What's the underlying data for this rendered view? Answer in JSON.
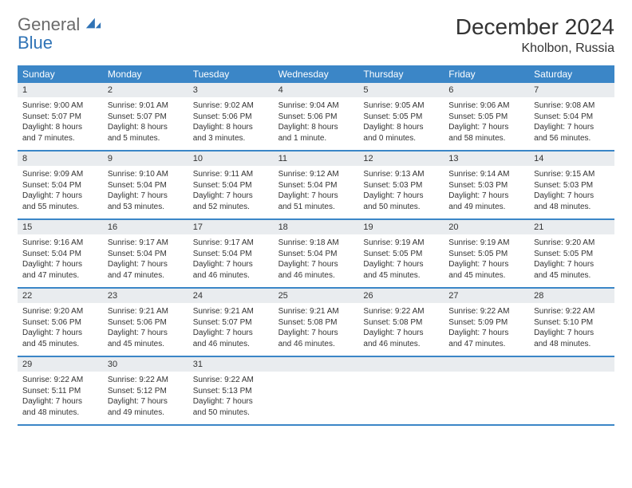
{
  "brand": {
    "word1": "General",
    "word2": "Blue"
  },
  "title": "December 2024",
  "location": "Kholbon, Russia",
  "colors": {
    "header_bg": "#3b86c7",
    "header_text": "#ffffff",
    "daynum_bg": "#e9ecef",
    "border": "#3b86c7",
    "logo_gray": "#6a6a6a",
    "logo_blue": "#2f73b6"
  },
  "dow": [
    "Sunday",
    "Monday",
    "Tuesday",
    "Wednesday",
    "Thursday",
    "Friday",
    "Saturday"
  ],
  "weeks": [
    [
      {
        "n": "1",
        "sr": "Sunrise: 9:00 AM",
        "ss": "Sunset: 5:07 PM",
        "d1": "Daylight: 8 hours",
        "d2": "and 7 minutes."
      },
      {
        "n": "2",
        "sr": "Sunrise: 9:01 AM",
        "ss": "Sunset: 5:07 PM",
        "d1": "Daylight: 8 hours",
        "d2": "and 5 minutes."
      },
      {
        "n": "3",
        "sr": "Sunrise: 9:02 AM",
        "ss": "Sunset: 5:06 PM",
        "d1": "Daylight: 8 hours",
        "d2": "and 3 minutes."
      },
      {
        "n": "4",
        "sr": "Sunrise: 9:04 AM",
        "ss": "Sunset: 5:06 PM",
        "d1": "Daylight: 8 hours",
        "d2": "and 1 minute."
      },
      {
        "n": "5",
        "sr": "Sunrise: 9:05 AM",
        "ss": "Sunset: 5:05 PM",
        "d1": "Daylight: 8 hours",
        "d2": "and 0 minutes."
      },
      {
        "n": "6",
        "sr": "Sunrise: 9:06 AM",
        "ss": "Sunset: 5:05 PM",
        "d1": "Daylight: 7 hours",
        "d2": "and 58 minutes."
      },
      {
        "n": "7",
        "sr": "Sunrise: 9:08 AM",
        "ss": "Sunset: 5:04 PM",
        "d1": "Daylight: 7 hours",
        "d2": "and 56 minutes."
      }
    ],
    [
      {
        "n": "8",
        "sr": "Sunrise: 9:09 AM",
        "ss": "Sunset: 5:04 PM",
        "d1": "Daylight: 7 hours",
        "d2": "and 55 minutes."
      },
      {
        "n": "9",
        "sr": "Sunrise: 9:10 AM",
        "ss": "Sunset: 5:04 PM",
        "d1": "Daylight: 7 hours",
        "d2": "and 53 minutes."
      },
      {
        "n": "10",
        "sr": "Sunrise: 9:11 AM",
        "ss": "Sunset: 5:04 PM",
        "d1": "Daylight: 7 hours",
        "d2": "and 52 minutes."
      },
      {
        "n": "11",
        "sr": "Sunrise: 9:12 AM",
        "ss": "Sunset: 5:04 PM",
        "d1": "Daylight: 7 hours",
        "d2": "and 51 minutes."
      },
      {
        "n": "12",
        "sr": "Sunrise: 9:13 AM",
        "ss": "Sunset: 5:03 PM",
        "d1": "Daylight: 7 hours",
        "d2": "and 50 minutes."
      },
      {
        "n": "13",
        "sr": "Sunrise: 9:14 AM",
        "ss": "Sunset: 5:03 PM",
        "d1": "Daylight: 7 hours",
        "d2": "and 49 minutes."
      },
      {
        "n": "14",
        "sr": "Sunrise: 9:15 AM",
        "ss": "Sunset: 5:03 PM",
        "d1": "Daylight: 7 hours",
        "d2": "and 48 minutes."
      }
    ],
    [
      {
        "n": "15",
        "sr": "Sunrise: 9:16 AM",
        "ss": "Sunset: 5:04 PM",
        "d1": "Daylight: 7 hours",
        "d2": "and 47 minutes."
      },
      {
        "n": "16",
        "sr": "Sunrise: 9:17 AM",
        "ss": "Sunset: 5:04 PM",
        "d1": "Daylight: 7 hours",
        "d2": "and 47 minutes."
      },
      {
        "n": "17",
        "sr": "Sunrise: 9:17 AM",
        "ss": "Sunset: 5:04 PM",
        "d1": "Daylight: 7 hours",
        "d2": "and 46 minutes."
      },
      {
        "n": "18",
        "sr": "Sunrise: 9:18 AM",
        "ss": "Sunset: 5:04 PM",
        "d1": "Daylight: 7 hours",
        "d2": "and 46 minutes."
      },
      {
        "n": "19",
        "sr": "Sunrise: 9:19 AM",
        "ss": "Sunset: 5:05 PM",
        "d1": "Daylight: 7 hours",
        "d2": "and 45 minutes."
      },
      {
        "n": "20",
        "sr": "Sunrise: 9:19 AM",
        "ss": "Sunset: 5:05 PM",
        "d1": "Daylight: 7 hours",
        "d2": "and 45 minutes."
      },
      {
        "n": "21",
        "sr": "Sunrise: 9:20 AM",
        "ss": "Sunset: 5:05 PM",
        "d1": "Daylight: 7 hours",
        "d2": "and 45 minutes."
      }
    ],
    [
      {
        "n": "22",
        "sr": "Sunrise: 9:20 AM",
        "ss": "Sunset: 5:06 PM",
        "d1": "Daylight: 7 hours",
        "d2": "and 45 minutes."
      },
      {
        "n": "23",
        "sr": "Sunrise: 9:21 AM",
        "ss": "Sunset: 5:06 PM",
        "d1": "Daylight: 7 hours",
        "d2": "and 45 minutes."
      },
      {
        "n": "24",
        "sr": "Sunrise: 9:21 AM",
        "ss": "Sunset: 5:07 PM",
        "d1": "Daylight: 7 hours",
        "d2": "and 46 minutes."
      },
      {
        "n": "25",
        "sr": "Sunrise: 9:21 AM",
        "ss": "Sunset: 5:08 PM",
        "d1": "Daylight: 7 hours",
        "d2": "and 46 minutes."
      },
      {
        "n": "26",
        "sr": "Sunrise: 9:22 AM",
        "ss": "Sunset: 5:08 PM",
        "d1": "Daylight: 7 hours",
        "d2": "and 46 minutes."
      },
      {
        "n": "27",
        "sr": "Sunrise: 9:22 AM",
        "ss": "Sunset: 5:09 PM",
        "d1": "Daylight: 7 hours",
        "d2": "and 47 minutes."
      },
      {
        "n": "28",
        "sr": "Sunrise: 9:22 AM",
        "ss": "Sunset: 5:10 PM",
        "d1": "Daylight: 7 hours",
        "d2": "and 48 minutes."
      }
    ],
    [
      {
        "n": "29",
        "sr": "Sunrise: 9:22 AM",
        "ss": "Sunset: 5:11 PM",
        "d1": "Daylight: 7 hours",
        "d2": "and 48 minutes."
      },
      {
        "n": "30",
        "sr": "Sunrise: 9:22 AM",
        "ss": "Sunset: 5:12 PM",
        "d1": "Daylight: 7 hours",
        "d2": "and 49 minutes."
      },
      {
        "n": "31",
        "sr": "Sunrise: 9:22 AM",
        "ss": "Sunset: 5:13 PM",
        "d1": "Daylight: 7 hours",
        "d2": "and 50 minutes."
      },
      {
        "empty": true
      },
      {
        "empty": true
      },
      {
        "empty": true
      },
      {
        "empty": true
      }
    ]
  ]
}
